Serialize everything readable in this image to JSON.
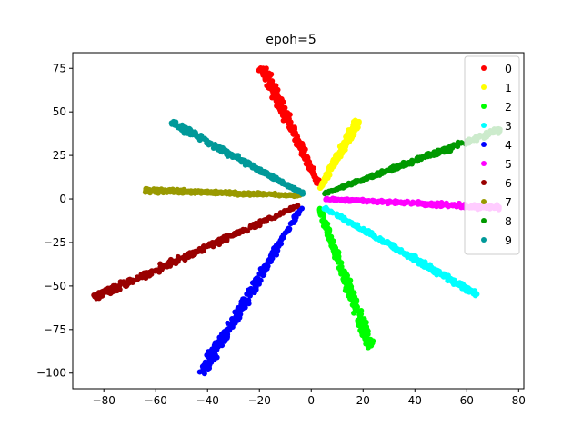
{
  "chart_data": {
    "type": "scatter",
    "title": "epoh=5",
    "xlabel": "",
    "ylabel": "",
    "xlim": [
      -92,
      82
    ],
    "ylim": [
      -109,
      84
    ],
    "xticks": [
      -80,
      -60,
      -40,
      -20,
      0,
      20,
      40,
      60,
      80
    ],
    "yticks": [
      75,
      50,
      25,
      0,
      -25,
      -50,
      -75,
      -100
    ],
    "grid": false,
    "legend_position": "top-right",
    "series": [
      {
        "name": "0",
        "color": "#ff0000",
        "start": [
          3.0,
          8.0
        ],
        "end": [
          -19.0,
          76.0
        ],
        "spread": 2.2
      },
      {
        "name": "1",
        "color": "#ffff00",
        "start": [
          3.0,
          5.0
        ],
        "end": [
          18.0,
          45.0
        ],
        "spread": 1.6
      },
      {
        "name": "2",
        "color": "#00ff00",
        "start": [
          3.0,
          -5.0
        ],
        "end": [
          23.0,
          -86.0
        ],
        "spread": 2.2
      },
      {
        "name": "3",
        "color": "#00ffff",
        "start": [
          5.0,
          -5.0
        ],
        "end": [
          64.0,
          -55.0
        ],
        "spread": 1.8
      },
      {
        "name": "4",
        "color": "#0000ff",
        "start": [
          -4.0,
          -5.0
        ],
        "end": [
          -42.0,
          -100.0
        ],
        "spread": 2.6
      },
      {
        "name": "5",
        "color": "#ff00ff",
        "start": [
          5.0,
          0.0
        ],
        "end": [
          73.0,
          -5.0
        ],
        "spread": 1.5
      },
      {
        "name": "6",
        "color": "#990000",
        "start": [
          -5.0,
          -4.0
        ],
        "end": [
          -84.0,
          -57.0
        ],
        "spread": 2.3
      },
      {
        "name": "7",
        "color": "#999900",
        "start": [
          -4.0,
          2.0
        ],
        "end": [
          -64.0,
          5.0
        ],
        "spread": 1.4
      },
      {
        "name": "8",
        "color": "#009900",
        "start": [
          5.0,
          3.0
        ],
        "end": [
          73.0,
          40.0
        ],
        "spread": 1.8
      },
      {
        "name": "9",
        "color": "#009999",
        "start": [
          -3.0,
          3.0
        ],
        "end": [
          -54.0,
          44.0
        ],
        "spread": 1.8
      }
    ]
  }
}
